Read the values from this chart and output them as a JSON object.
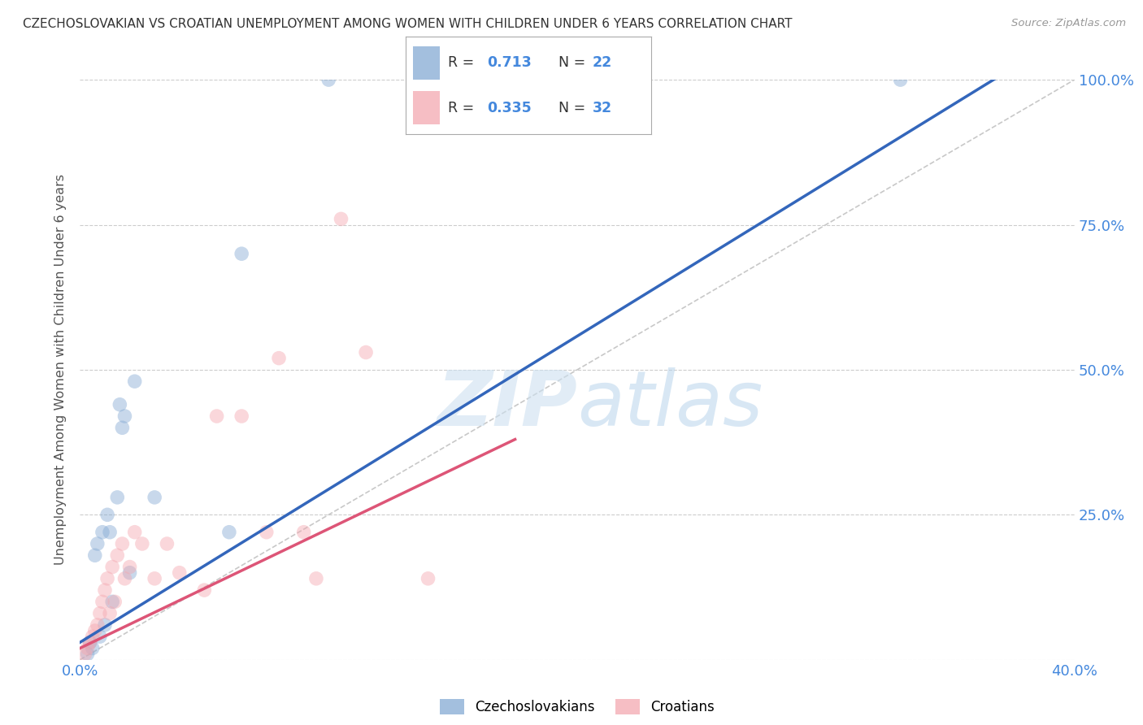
{
  "title": "CZECHOSLOVAKIAN VS CROATIAN UNEMPLOYMENT AMONG WOMEN WITH CHILDREN UNDER 6 YEARS CORRELATION CHART",
  "source": "Source: ZipAtlas.com",
  "ylabel": "Unemployment Among Women with Children Under 6 years",
  "xlim": [
    0,
    0.4
  ],
  "ylim": [
    0,
    1.0
  ],
  "xticks": [
    0.0,
    0.1,
    0.2,
    0.3,
    0.4
  ],
  "yticks": [
    0.0,
    0.25,
    0.5,
    0.75,
    1.0
  ],
  "grid_color": "#cccccc",
  "background_color": "#ffffff",
  "blue_color": "#85aad4",
  "pink_color": "#f4a8b0",
  "blue_line_color": "#3366bb",
  "pink_line_color": "#dd5577",
  "diag_line_color": "#c8c8c8",
  "legend_R_blue": "0.713",
  "legend_N_blue": "22",
  "legend_R_pink": "0.335",
  "legend_N_pink": "32",
  "legend_text_color": "#4488dd",
  "blue_scatter_x": [
    0.003,
    0.004,
    0.005,
    0.006,
    0.007,
    0.008,
    0.009,
    0.01,
    0.011,
    0.012,
    0.013,
    0.015,
    0.016,
    0.017,
    0.018,
    0.02,
    0.022,
    0.03,
    0.06,
    0.065,
    0.1,
    0.33
  ],
  "blue_scatter_y": [
    0.01,
    0.03,
    0.02,
    0.18,
    0.2,
    0.04,
    0.22,
    0.06,
    0.25,
    0.22,
    0.1,
    0.28,
    0.44,
    0.4,
    0.42,
    0.15,
    0.48,
    0.28,
    0.22,
    0.7,
    1.0,
    1.0
  ],
  "pink_scatter_x": [
    0.002,
    0.003,
    0.004,
    0.005,
    0.006,
    0.007,
    0.008,
    0.009,
    0.01,
    0.011,
    0.012,
    0.013,
    0.014,
    0.015,
    0.017,
    0.018,
    0.02,
    0.022,
    0.025,
    0.03,
    0.035,
    0.04,
    0.05,
    0.055,
    0.065,
    0.075,
    0.08,
    0.09,
    0.095,
    0.105,
    0.115,
    0.14
  ],
  "pink_scatter_y": [
    0.01,
    0.02,
    0.03,
    0.04,
    0.05,
    0.06,
    0.08,
    0.1,
    0.12,
    0.14,
    0.08,
    0.16,
    0.1,
    0.18,
    0.2,
    0.14,
    0.16,
    0.22,
    0.2,
    0.14,
    0.2,
    0.15,
    0.12,
    0.42,
    0.42,
    0.22,
    0.52,
    0.22,
    0.14,
    0.76,
    0.53,
    0.14
  ],
  "blue_line_x": [
    0.0,
    0.375
  ],
  "blue_line_y": [
    0.03,
    1.02
  ],
  "pink_line_x": [
    0.0,
    0.175
  ],
  "pink_line_y": [
    0.02,
    0.38
  ],
  "diag_line_x": [
    0.0,
    0.4
  ],
  "diag_line_y": [
    0.0,
    1.0
  ],
  "scatter_size": 160,
  "scatter_alpha": 0.45,
  "label_czechs": "Czechoslovakians",
  "label_croats": "Croatians"
}
